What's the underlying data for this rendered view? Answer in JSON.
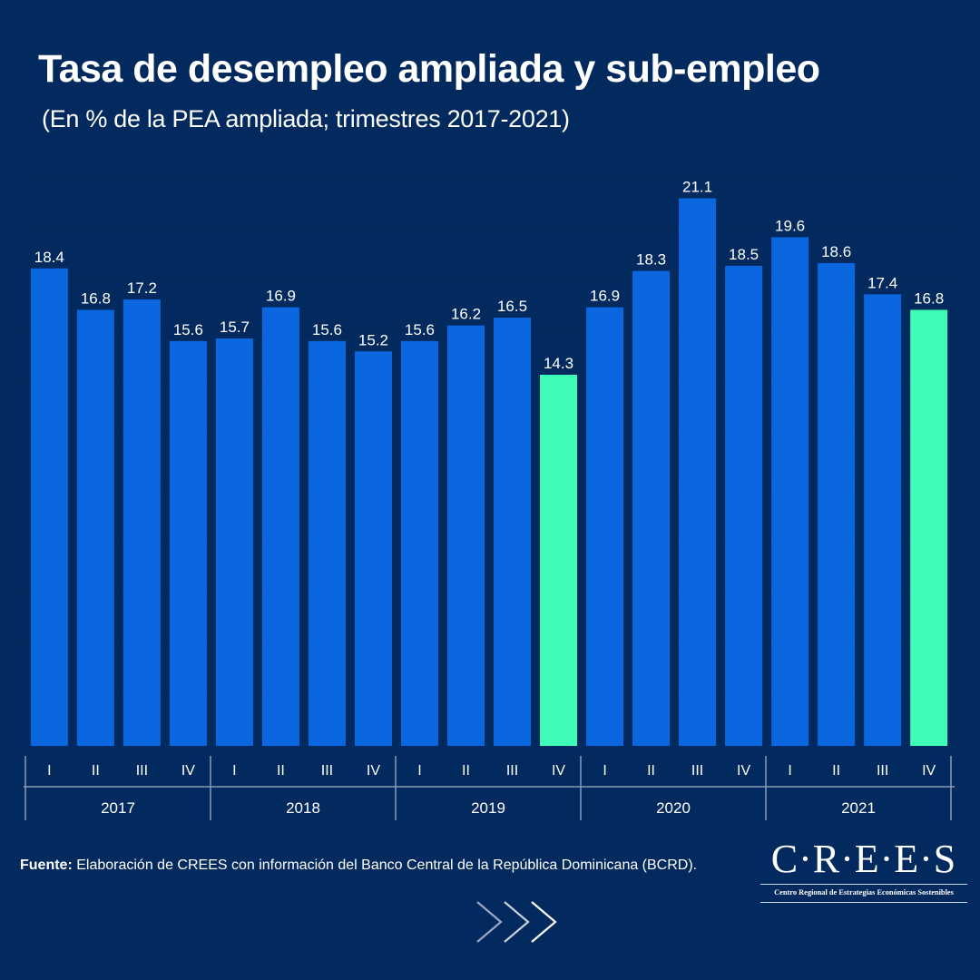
{
  "header": {
    "title": "Tasa de desempleo ampliada y sub-empleo",
    "subtitle": "(En % de la PEA ampliada; trimestres 2017-2021)"
  },
  "chart_data": {
    "type": "bar",
    "title": "Tasa de desempleo ampliada y sub-empleo",
    "subtitle": "(En % de la PEA ampliada; trimestres 2017-2021)",
    "xlabel": "",
    "ylabel": "",
    "ylim": [
      0,
      22
    ],
    "grid": true,
    "legend": "none",
    "categories": [
      "I",
      "II",
      "III",
      "IV",
      "I",
      "II",
      "III",
      "IV",
      "I",
      "II",
      "III",
      "IV",
      "I",
      "II",
      "III",
      "IV",
      "I",
      "II",
      "III",
      "IV"
    ],
    "groups": [
      {
        "label": "2017",
        "count": 4
      },
      {
        "label": "2018",
        "count": 4
      },
      {
        "label": "2019",
        "count": 4
      },
      {
        "label": "2020",
        "count": 4
      },
      {
        "label": "2021",
        "count": 4
      }
    ],
    "values": [
      18.4,
      16.8,
      17.2,
      15.6,
      15.7,
      16.9,
      15.6,
      15.2,
      15.6,
      16.2,
      16.5,
      14.3,
      16.9,
      18.3,
      21.1,
      18.5,
      19.6,
      18.6,
      17.4,
      16.8
    ],
    "highlighted": [
      11,
      19
    ],
    "colors": {
      "default": "#0a67e0",
      "highlight": "#3ffdb8",
      "label": "#ffffff",
      "axis": "#8b9bb8"
    }
  },
  "footer": {
    "source_label": "Fuente:",
    "source_text": " Elaboración de CREES con información del Banco Central de la República Dominicana (BCRD).",
    "logo_word": "C·R·E·E·S",
    "logo_sub": "Centro Regional de Estrategias Económicas Sostenibles",
    "next_icon": "triple-chevron-right-icon"
  }
}
